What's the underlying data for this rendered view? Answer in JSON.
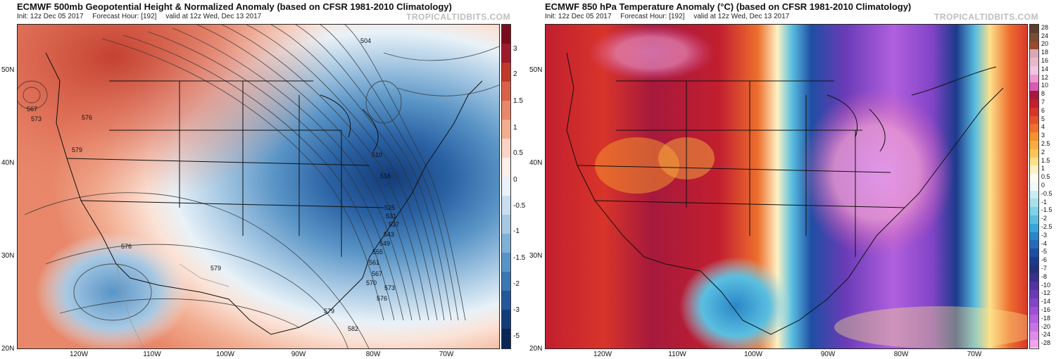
{
  "left": {
    "title": "ECMWF 500mb Geopotential Height & Normalized Anomaly (based on CFSR 1981-2010 Climatology)",
    "init": "Init: 12z Dec 05 2017",
    "forecast_hour": "Forecast Hour: [192]",
    "valid": "valid at 12z Wed, Dec 13 2017",
    "watermark": "TROPICALTIDBITS.COM",
    "lat_labels": [
      "50N",
      "40N",
      "30N",
      "20N"
    ],
    "lon_labels": [
      "120W",
      "110W",
      "100W",
      "90W",
      "80W",
      "70W"
    ],
    "colorbar_labels": [
      "3",
      "2",
      "1.5",
      "1",
      "0.5",
      "0",
      "-0.5",
      "-1",
      "-1.5",
      "-2",
      "-3",
      "-5"
    ],
    "colorbar_colors": [
      "#7a0c1e",
      "#9e1a2a",
      "#c0392b",
      "#d9614a",
      "#e8876a",
      "#f2ad91",
      "#f9d3c3",
      "#fdf0ea",
      "#e9f2f8",
      "#c9def0",
      "#a6c8e3",
      "#7fb0d6",
      "#5994c6",
      "#3a77b3",
      "#24589a",
      "#143c79",
      "#0b2555"
    ],
    "contour_labels": [
      "504",
      "567",
      "573",
      "576",
      "579",
      "576",
      "579",
      "510",
      "516",
      "525",
      "531",
      "537",
      "543",
      "549",
      "555",
      "561",
      "567",
      "570",
      "573",
      "576",
      "579",
      "582"
    ]
  },
  "right": {
    "title": "ECMWF 850 hPa Temperature Anomaly (°C) (based on CFSR 1981-2010 Climatology)",
    "init": "Init: 12z Dec 05 2017",
    "forecast_hour": "Forecast Hour: [192]",
    "valid": "valid at 12z Wed, Dec 13 2017",
    "watermark": "TROPICALTIDBITS.COM",
    "lat_labels": [
      "50N",
      "40N",
      "30N",
      "20N"
    ],
    "lon_labels": [
      "120W",
      "110W",
      "100W",
      "90W",
      "80W",
      "70W"
    ],
    "colorbar_labels": [
      "28",
      "24",
      "20",
      "18",
      "16",
      "14",
      "12",
      "10",
      "8",
      "7",
      "6",
      "5",
      "4",
      "3",
      "2.5",
      "2",
      "1.5",
      "1",
      "0.5",
      "0",
      "-0.5",
      "-1",
      "-1.5",
      "-2",
      "-2.5",
      "-3",
      "-4",
      "-5",
      "-6",
      "-7",
      "-8",
      "-10",
      "-12",
      "-14",
      "-16",
      "-18",
      "-20",
      "-24",
      "-28"
    ],
    "colorbar_colors": [
      "#5c3d2e",
      "#7a4b34",
      "#9c4a2c",
      "#d9a7b8",
      "#e9b8c9",
      "#f0c6e0",
      "#ec9ad0",
      "#d75bb0",
      "#a6193c",
      "#c21f2f",
      "#d8342a",
      "#e5502a",
      "#ee6f2e",
      "#f4922f",
      "#f8ae3e",
      "#fbc657",
      "#fde08a",
      "#fef2c4",
      "#fffdf0",
      "#f1f9fb",
      "#c9ecf2",
      "#a6e1ec",
      "#7fd2e6",
      "#5abfe0",
      "#3aa5d8",
      "#2a86c8",
      "#246bb7",
      "#1e4ea3",
      "#1d3a8c",
      "#25307a",
      "#3a2f8a",
      "#5233a0",
      "#6a3bb7",
      "#8344c7",
      "#9b50d6",
      "#b160de",
      "#c874e4",
      "#dd8ce8",
      "#f0a5ee"
    ]
  }
}
